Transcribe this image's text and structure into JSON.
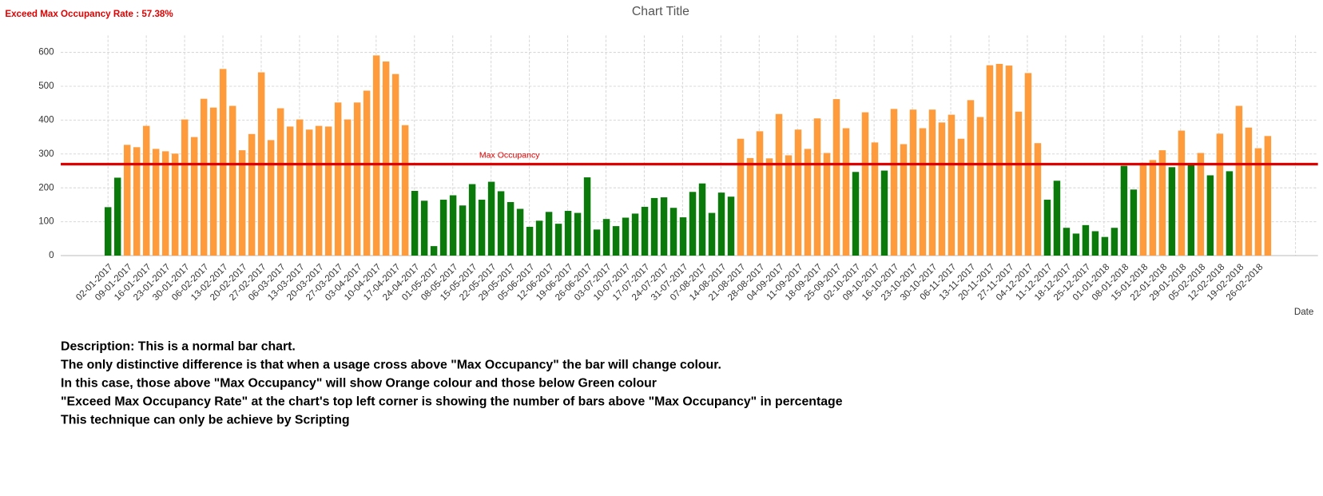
{
  "chart_data": {
    "type": "bar",
    "title": "Chart Title",
    "annotation": "Exceed Max Occupancy Rate : 57.38%",
    "x_label": "Date",
    "threshold": {
      "value": 270,
      "label": "Max Occupancy",
      "color": "#e00000"
    },
    "color_above": "#ff9b3a",
    "color_below": "#0a7a0a",
    "ylim": [
      0,
      650
    ],
    "yticks": [
      0,
      100,
      200,
      300,
      400,
      500,
      600
    ],
    "grid": true,
    "categories": [
      "02-01-2017",
      null,
      "09-01-2017",
      null,
      "16-01-2017",
      null,
      "23-01-2017",
      null,
      "30-01-2017",
      null,
      "06-02-2017",
      null,
      "13-02-2017",
      null,
      "20-02-2017",
      null,
      "27-02-2017",
      null,
      "06-03-2017",
      null,
      "13-03-2017",
      null,
      "20-03-2017",
      null,
      "27-03-2017",
      null,
      "03-04-2017",
      null,
      "10-04-2017",
      null,
      "17-04-2017",
      null,
      "24-04-2017",
      null,
      "01-05-2017",
      null,
      "08-05-2017",
      null,
      "15-05-2017",
      null,
      "22-05-2017",
      null,
      "29-05-2017",
      null,
      "05-06-2017",
      null,
      "12-06-2017",
      null,
      "19-06-2017",
      null,
      "26-06-2017",
      null,
      "03-07-2017",
      null,
      "10-07-2017",
      null,
      "17-07-2017",
      null,
      "24-07-2017",
      null,
      "31-07-2017",
      null,
      "07-08-2017",
      null,
      "14-08-2017",
      null,
      "21-08-2017",
      null,
      "28-08-2017",
      null,
      "04-09-2017",
      null,
      "11-09-2017",
      null,
      "18-09-2017",
      null,
      "25-09-2017",
      null,
      "02-10-2017",
      null,
      "09-10-2017",
      null,
      "16-10-2017",
      null,
      "23-10-2017",
      null,
      "30-10-2017",
      null,
      "06-11-2017",
      null,
      "13-11-2017",
      null,
      "20-11-2017",
      null,
      "27-11-2017",
      null,
      "04-12-2017",
      null,
      "11-12-2017",
      null,
      "18-12-2017",
      null,
      "25-12-2017",
      null,
      "01-01-2018",
      null,
      "08-01-2018",
      null,
      "15-01-2018",
      null,
      "22-01-2018",
      null,
      "29-01-2018",
      null,
      "05-02-2018",
      null,
      "12-02-2018",
      null,
      "19-02-2018",
      null,
      "26-02-2018",
      null
    ],
    "values": [
      143,
      230,
      327,
      320,
      383,
      315,
      308,
      301,
      402,
      350,
      463,
      437,
      551,
      442,
      311,
      359,
      541,
      341,
      435,
      381,
      402,
      372,
      383,
      381,
      452,
      402,
      452,
      487,
      591,
      573,
      536,
      385,
      191,
      162,
      28,
      165,
      178,
      148,
      211,
      165,
      218,
      190,
      158,
      138,
      85,
      103,
      129,
      94,
      132,
      126,
      231,
      77,
      108,
      87,
      112,
      124,
      144,
      170,
      172,
      141,
      113,
      188,
      213,
      126,
      186,
      174,
      345,
      288,
      367,
      287,
      418,
      296,
      372,
      315,
      405,
      303,
      462,
      376,
      247,
      423,
      334,
      251,
      433,
      329,
      431,
      376,
      431,
      393,
      416,
      345,
      459,
      409,
      562,
      566,
      561,
      425,
      539,
      332,
      165,
      221,
      82,
      65,
      90,
      72,
      55,
      82,
      265,
      195,
      274,
      282,
      311,
      261,
      369,
      268,
      303,
      237,
      360,
      249,
      442,
      378,
      317,
      353
    ]
  },
  "description": [
    "Description: This is a normal bar chart.",
    "The only distinctive difference is that when a usage cross above \"Max Occupancy\" the bar will change colour.",
    "In this case, those above \"Max Occupancy\" will show Orange colour and those below Green colour",
    "\"Exceed Max Occupancy Rate\" at the chart's top left corner is showing the number of bars above \"Max Occupancy\" in percentage",
    "This technique can only be achieve by Scripting"
  ]
}
